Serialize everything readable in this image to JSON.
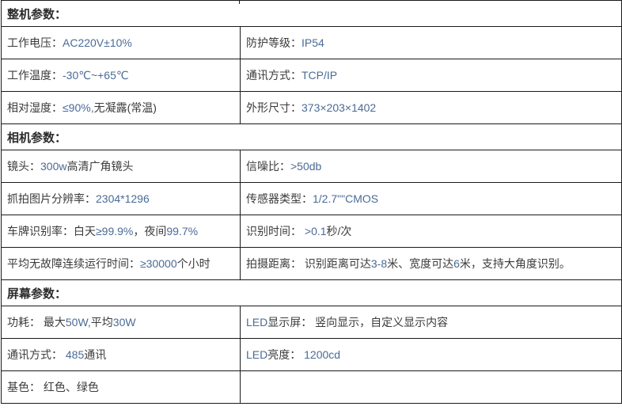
{
  "colors": {
    "background": "#ffffff",
    "border": "#1a1a1a",
    "label_text": "#3b3b3b",
    "numeric_text": "#4a6b97",
    "header_text": "#2b2b2b"
  },
  "table": {
    "sections": [
      {
        "header": "整机参数：",
        "rows": [
          {
            "left": [
              {
                "t": "工作电压：",
                "k": "c"
              },
              {
                "t": "AC220V±10%",
                "k": "n"
              }
            ],
            "right": [
              {
                "t": "防护等级：",
                "k": "c"
              },
              {
                "t": "IP54",
                "k": "n"
              }
            ]
          },
          {
            "left": [
              {
                "t": "工作温度：",
                "k": "c"
              },
              {
                "t": "-30℃~+65℃",
                "k": "n"
              }
            ],
            "right": [
              {
                "t": "通讯方式：",
                "k": "c"
              },
              {
                "t": "TCP/IP",
                "k": "n"
              }
            ]
          },
          {
            "left": [
              {
                "t": "相对湿度：",
                "k": "c"
              },
              {
                "t": "≤90%,",
                "k": "n"
              },
              {
                "t": "无凝露(常温)",
                "k": "c"
              }
            ],
            "right": [
              {
                "t": "外形尺寸：",
                "k": "c"
              },
              {
                "t": "373×203×1402",
                "k": "n"
              }
            ]
          }
        ]
      },
      {
        "header": "相机参数：",
        "rows": [
          {
            "left": [
              {
                "t": "镜头：",
                "k": "c"
              },
              {
                "t": "300w",
                "k": "n"
              },
              {
                "t": "高清广角镜头",
                "k": "c"
              }
            ],
            "right": [
              {
                "t": "信噪比：",
                "k": "c"
              },
              {
                "t": ">50db",
                "k": "n"
              }
            ]
          },
          {
            "left": [
              {
                "t": "抓拍图片分辨率：",
                "k": "c"
              },
              {
                "t": "2304*1296",
                "k": "n"
              }
            ],
            "right": [
              {
                "t": "传感器类型：",
                "k": "c"
              },
              {
                "t": "1/2.7\"\"CMOS",
                "k": "n"
              }
            ]
          },
          {
            "left": [
              {
                "t": "车牌识别率：白天",
                "k": "c"
              },
              {
                "t": "≥99.9%",
                "k": "n"
              },
              {
                "t": "，夜间",
                "k": "c"
              },
              {
                "t": "99.7%",
                "k": "n"
              }
            ],
            "right": [
              {
                "t": "识别时间： ",
                "k": "c"
              },
              {
                "t": ">0.1",
                "k": "n"
              },
              {
                "t": "秒/次",
                "k": "c"
              }
            ]
          },
          {
            "left": [
              {
                "t": "平均无故障连续运行时间：",
                "k": "c"
              },
              {
                "t": "≥30000",
                "k": "n"
              },
              {
                "t": "个小时",
                "k": "c"
              }
            ],
            "right": [
              {
                "t": "拍摄距离： 识别距离可达",
                "k": "c"
              },
              {
                "t": "3-8",
                "k": "n"
              },
              {
                "t": "米、宽度可达",
                "k": "c"
              },
              {
                "t": "6",
                "k": "n"
              },
              {
                "t": "米，支持大角度识别。",
                "k": "c"
              }
            ]
          }
        ]
      },
      {
        "header": "屏幕参数：",
        "rows": [
          {
            "left": [
              {
                "t": "功耗： 最大",
                "k": "c"
              },
              {
                "t": "50W,",
                "k": "n"
              },
              {
                "t": "平均",
                "k": "c"
              },
              {
                "t": "30W",
                "k": "n"
              }
            ],
            "right": [
              {
                "t": "LED",
                "k": "n"
              },
              {
                "t": "显示屏： 竖向显示，自定义显示内容",
                "k": "c"
              }
            ]
          },
          {
            "left": [
              {
                "t": "通讯方式： ",
                "k": "c"
              },
              {
                "t": "485",
                "k": "n"
              },
              {
                "t": "通讯",
                "k": "c"
              }
            ],
            "right": [
              {
                "t": "LED",
                "k": "n"
              },
              {
                "t": "亮度： ",
                "k": "c"
              },
              {
                "t": "1200cd",
                "k": "n"
              }
            ]
          },
          {
            "left": [
              {
                "t": "基色： 红色、绿色",
                "k": "c"
              }
            ],
            "right": []
          }
        ]
      }
    ]
  }
}
